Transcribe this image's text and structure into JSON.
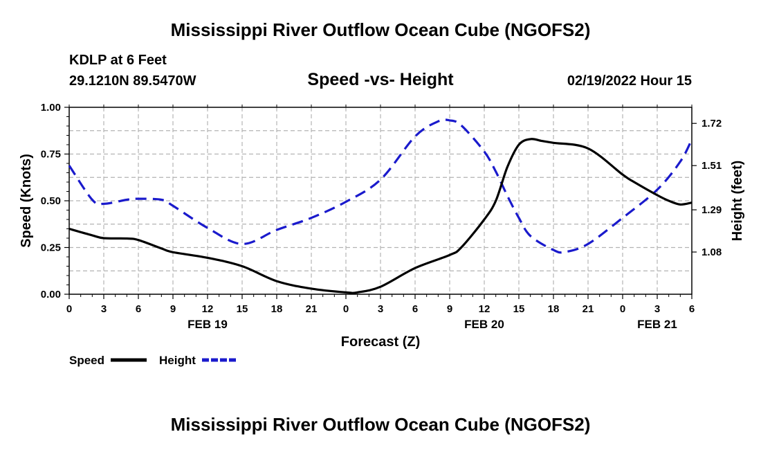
{
  "header": {
    "title": "Mississippi River Outflow Ocean Cube (NGOFS2)",
    "station": "KDLP at 6 Feet",
    "coords": "29.1210N  89.5470W",
    "subtitle": "Speed -vs- Height",
    "datetime": "02/19/2022 Hour 15"
  },
  "footer": {
    "title": "Mississippi River Outflow Ocean Cube (NGOFS2)"
  },
  "legend": {
    "speed_label": "Speed",
    "height_label": "Height",
    "speed_color": "#000000",
    "height_color": "#1a1acc"
  },
  "chart_data": {
    "type": "line",
    "title": "Speed -vs- Height",
    "xlabel": "Forecast (Z)",
    "ylabel": "Speed (Knots)",
    "y2label": "Height (feet)",
    "x_range": [
      0,
      54
    ],
    "ylim": [
      0,
      1.0
    ],
    "y2lim": [
      0.87,
      1.8
    ],
    "x_tick_hours": [
      0,
      3,
      6,
      9,
      12,
      15,
      18,
      21,
      24,
      27,
      30,
      33,
      36,
      39,
      42,
      45,
      48,
      51,
      54
    ],
    "x_tick_labels": [
      "0",
      "3",
      "6",
      "9",
      "12",
      "15",
      "18",
      "21",
      "0",
      "3",
      "6",
      "9",
      "12",
      "15",
      "18",
      "21",
      "0",
      "3",
      "6"
    ],
    "day_labels": [
      {
        "hour": 12,
        "label": "FEB 19"
      },
      {
        "hour": 36,
        "label": "FEB 20"
      },
      {
        "hour": 51,
        "label": "FEB 21"
      }
    ],
    "y_ticks": [
      "0.00",
      "0.25",
      "0.50",
      "0.75",
      "1.00"
    ],
    "y2_ticks": [
      "1.08",
      "1.29",
      "1.51",
      "1.72"
    ],
    "grid": true,
    "series": [
      {
        "name": "Speed",
        "axis": "left",
        "style": "solid",
        "color": "#000000",
        "x": [
          0,
          2,
          3,
          5,
          6,
          8,
          9,
          12,
          15,
          18,
          21,
          24,
          25,
          27,
          30,
          33,
          34,
          36,
          37,
          38,
          39,
          40,
          41,
          42,
          45,
          48,
          49,
          51,
          52,
          53,
          54
        ],
        "y": [
          0.35,
          0.315,
          0.3,
          0.298,
          0.29,
          0.245,
          0.225,
          0.195,
          0.15,
          0.07,
          0.03,
          0.01,
          0.01,
          0.04,
          0.14,
          0.21,
          0.25,
          0.4,
          0.5,
          0.68,
          0.8,
          0.83,
          0.82,
          0.81,
          0.78,
          0.64,
          0.6,
          0.53,
          0.5,
          0.48,
          0.49
        ]
      },
      {
        "name": "Height",
        "axis": "right",
        "style": "dashed",
        "color": "#1a1acc",
        "x": [
          0,
          2,
          3,
          5,
          6,
          8,
          9,
          12,
          15,
          18,
          21,
          24,
          27,
          30,
          32,
          33,
          34,
          36,
          37,
          38,
          39,
          40,
          42,
          43,
          45,
          48,
          51,
          53,
          54
        ],
        "y": [
          1.51,
          1.34,
          1.32,
          1.34,
          1.345,
          1.34,
          1.31,
          1.2,
          1.12,
          1.19,
          1.25,
          1.33,
          1.44,
          1.655,
          1.73,
          1.735,
          1.71,
          1.58,
          1.48,
          1.36,
          1.25,
          1.16,
          1.09,
          1.08,
          1.12,
          1.25,
          1.39,
          1.53,
          1.64
        ]
      }
    ]
  }
}
